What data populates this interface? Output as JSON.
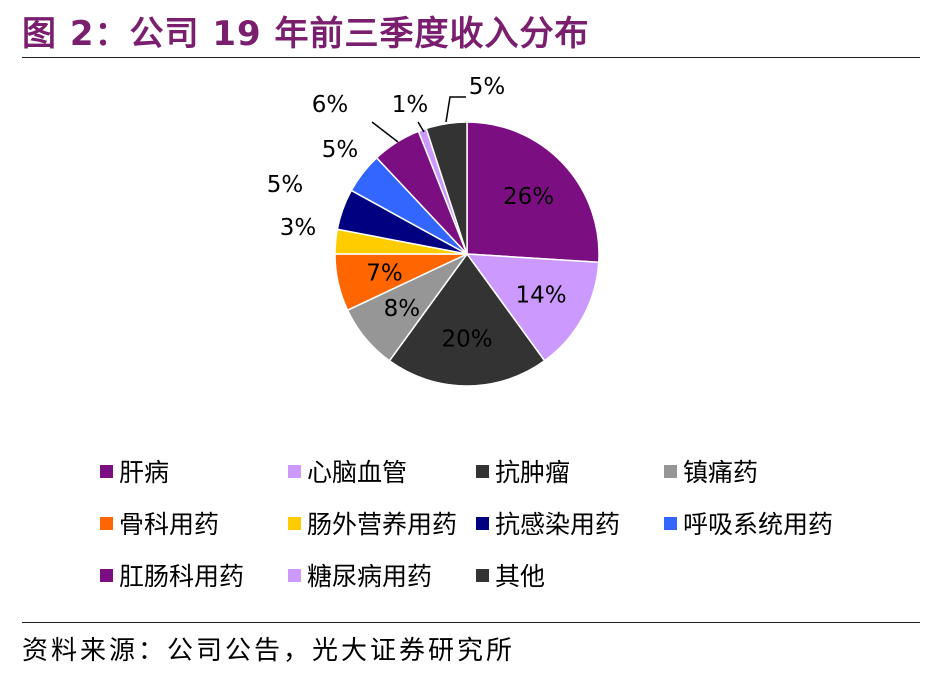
{
  "title": "图 2：公司 19 年前三季度收入分布",
  "source": "资料来源：公司公告，光大证券研究所",
  "chart_data": {
    "type": "pie",
    "title": "图 2：公司 19 年前三季度收入分布",
    "start_angle_deg": 0,
    "direction": "clockwise",
    "legend_position": "bottom",
    "slices": [
      {
        "name": "肝病",
        "value": 26,
        "label": "26%",
        "color": "#7b0f82",
        "label_inside": true
      },
      {
        "name": "心脑血管",
        "value": 14,
        "label": "14%",
        "color": "#cc99ff",
        "label_inside": true
      },
      {
        "name": "抗肿瘤",
        "value": 20,
        "label": "20%",
        "color": "#333333",
        "label_inside": true
      },
      {
        "name": "镇痛药",
        "value": 8,
        "label": "8%",
        "color": "#969696",
        "label_inside": true
      },
      {
        "name": "骨科用药",
        "value": 7,
        "label": "7%",
        "color": "#ff6600",
        "label_inside": true
      },
      {
        "name": "肠外营养用药",
        "value": 3,
        "label": "3%",
        "color": "#ffcc00",
        "label_inside": false
      },
      {
        "name": "抗感染用药",
        "value": 5,
        "label": "5%",
        "color": "#000080",
        "label_inside": false
      },
      {
        "name": "呼吸系统用药",
        "value": 5,
        "label": "5%",
        "color": "#3366ff",
        "label_inside": false
      },
      {
        "name": "肛肠科用药",
        "value": 6,
        "label": "6%",
        "color": "#7b0f82",
        "label_inside": false
      },
      {
        "name": "糖尿病用药",
        "value": 1,
        "label": "1%",
        "color": "#cc99ff",
        "label_inside": false
      },
      {
        "name": "其他",
        "value": 5,
        "label": "5%",
        "color": "#333333",
        "label_inside": false
      }
    ]
  }
}
